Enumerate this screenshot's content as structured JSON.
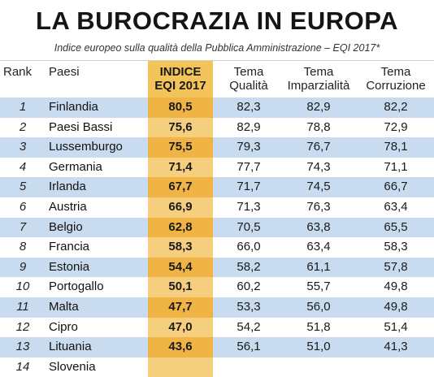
{
  "title": "LA BUROCRAZIA IN EUROPA",
  "subtitle": "Indice europeo sulla qualità della Pubblica Amministrazione – EQI 2017*",
  "columns": {
    "rank": "Rank",
    "paesi": "Paesi",
    "indice_1": "INDICE",
    "indice_2": "EQI 2017",
    "qualita_1": "Tema",
    "qualita_2": "Qualità",
    "imparzialita_1": "Tema",
    "imparzialita_2": "Imparzialità",
    "corruzione_1": "Tema",
    "corruzione_2": "Corruzione"
  },
  "rows": [
    {
      "rank": "1",
      "paese": "Finlandia",
      "indice": "80,5",
      "qualita": "82,3",
      "imparzialita": "82,9",
      "corruzione": "82,2"
    },
    {
      "rank": "2",
      "paese": "Paesi Bassi",
      "indice": "75,6",
      "qualita": "82,9",
      "imparzialita": "78,8",
      "corruzione": "72,9"
    },
    {
      "rank": "3",
      "paese": "Lussemburgo",
      "indice": "75,5",
      "qualita": "79,3",
      "imparzialita": "76,7",
      "corruzione": "78,1"
    },
    {
      "rank": "4",
      "paese": "Germania",
      "indice": "71,4",
      "qualita": "77,7",
      "imparzialita": "74,3",
      "corruzione": "71,1"
    },
    {
      "rank": "5",
      "paese": "Irlanda",
      "indice": "67,7",
      "qualita": "71,7",
      "imparzialita": "74,5",
      "corruzione": "66,7"
    },
    {
      "rank": "6",
      "paese": "Austria",
      "indice": "66,9",
      "qualita": "71,3",
      "imparzialita": "76,3",
      "corruzione": "63,4"
    },
    {
      "rank": "7",
      "paese": "Belgio",
      "indice": "62,8",
      "qualita": "70,5",
      "imparzialita": "63,8",
      "corruzione": "65,5"
    },
    {
      "rank": "8",
      "paese": "Francia",
      "indice": "58,3",
      "qualita": "66,0",
      "imparzialita": "63,4",
      "corruzione": "58,3"
    },
    {
      "rank": "9",
      "paese": "Estonia",
      "indice": "54,4",
      "qualita": "58,2",
      "imparzialita": "61,1",
      "corruzione": "57,8"
    },
    {
      "rank": "10",
      "paese": "Portogallo",
      "indice": "50,1",
      "qualita": "60,2",
      "imparzialita": "55,7",
      "corruzione": "49,8"
    },
    {
      "rank": "11",
      "paese": "Malta",
      "indice": "47,7",
      "qualita": "53,3",
      "imparzialita": "56,0",
      "corruzione": "49,8"
    },
    {
      "rank": "12",
      "paese": "Cipro",
      "indice": "47,0",
      "qualita": "54,2",
      "imparzialita": "51,8",
      "corruzione": "51,4"
    },
    {
      "rank": "13",
      "paese": "Lituania",
      "indice": "43,6",
      "qualita": "56,1",
      "imparzialita": "51,0",
      "corruzione": "41,3"
    },
    {
      "rank": "14",
      "paese": "Slovenia",
      "indice": "",
      "qualita": "",
      "imparzialita": "",
      "corruzione": ""
    }
  ]
}
